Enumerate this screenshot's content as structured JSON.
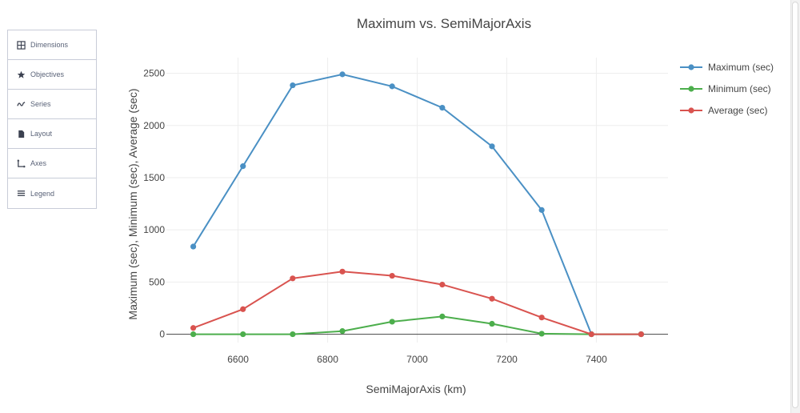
{
  "menu": {
    "items": [
      {
        "label": "Dimensions",
        "icon": "table-grid-icon"
      },
      {
        "label": "Objectives",
        "icon": "star-icon"
      },
      {
        "label": "Series",
        "icon": "wave-icon"
      },
      {
        "label": "Layout",
        "icon": "document-icon"
      },
      {
        "label": "Axes",
        "icon": "axes-icon"
      },
      {
        "label": "Legend",
        "icon": "list-icon"
      }
    ]
  },
  "chart_data": {
    "type": "line",
    "title": "Maximum vs. SemiMajorAxis",
    "xlabel": "SemiMajorAxis (km)",
    "ylabel": "Maximum (sec), Minimum (sec), Average (sec)",
    "x": [
      6500,
      6611,
      6722,
      6833,
      6944,
      7056,
      7167,
      7278,
      7389,
      7500
    ],
    "xlim": [
      6440,
      7560
    ],
    "ylim": [
      -80,
      2650
    ],
    "xticks": [
      6600,
      6800,
      7000,
      7200,
      7400
    ],
    "yticks": [
      0,
      500,
      1000,
      1500,
      2000,
      2500
    ],
    "grid": true,
    "legend_position": "top-right",
    "series": [
      {
        "name": "Maximum (sec)",
        "color": "#4a90c4",
        "values": [
          840,
          1610,
          2385,
          2490,
          2375,
          2170,
          1800,
          1190,
          0,
          0
        ]
      },
      {
        "name": "Minimum (sec)",
        "color": "#4cae4c",
        "values": [
          0,
          0,
          0,
          30,
          120,
          170,
          100,
          5,
          0,
          0
        ]
      },
      {
        "name": "Average (sec)",
        "color": "#d9534f",
        "values": [
          60,
          240,
          535,
          600,
          560,
          475,
          340,
          160,
          0,
          0
        ]
      }
    ]
  }
}
